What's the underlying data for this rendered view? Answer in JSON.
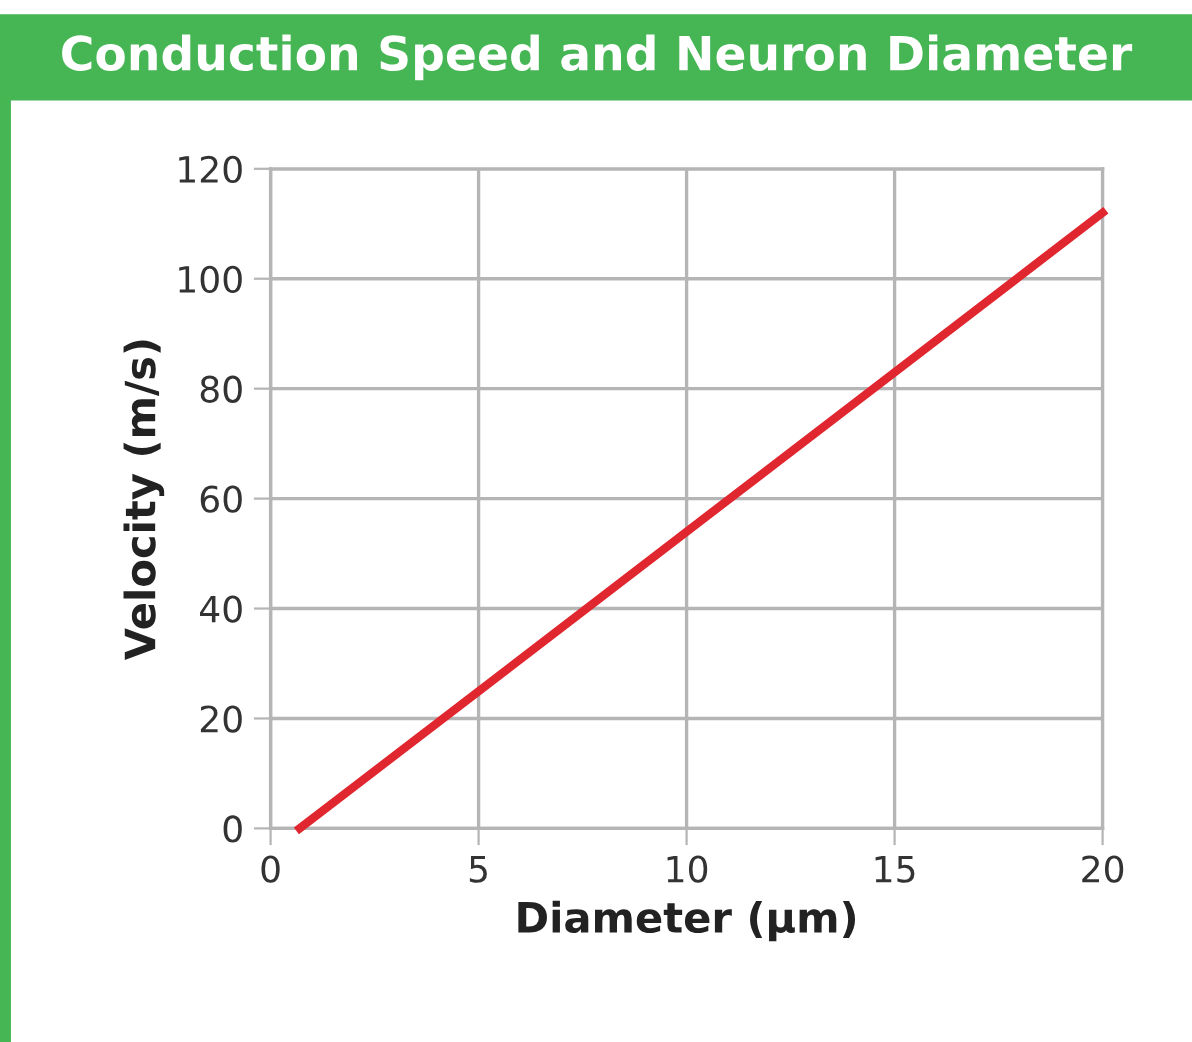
{
  "chart_data": {
    "type": "line",
    "title": "Conduction Speed and Neuron Diameter",
    "xlabel": "Diameter (µm)",
    "ylabel": "Velocity (m/s)",
    "series": [
      {
        "color": "#e0262e",
        "x": [
          0.7,
          20
        ],
        "values": [
          0,
          112
        ]
      }
    ],
    "xlim": [
      0,
      20
    ],
    "xticks": [
      0,
      5,
      10,
      15,
      20
    ],
    "ylim": [
      0,
      120
    ],
    "yticks": [
      0,
      20,
      40,
      60,
      80,
      100,
      120
    ],
    "grid": true,
    "legend": false,
    "marker": "none",
    "line_style": "solid"
  }
}
